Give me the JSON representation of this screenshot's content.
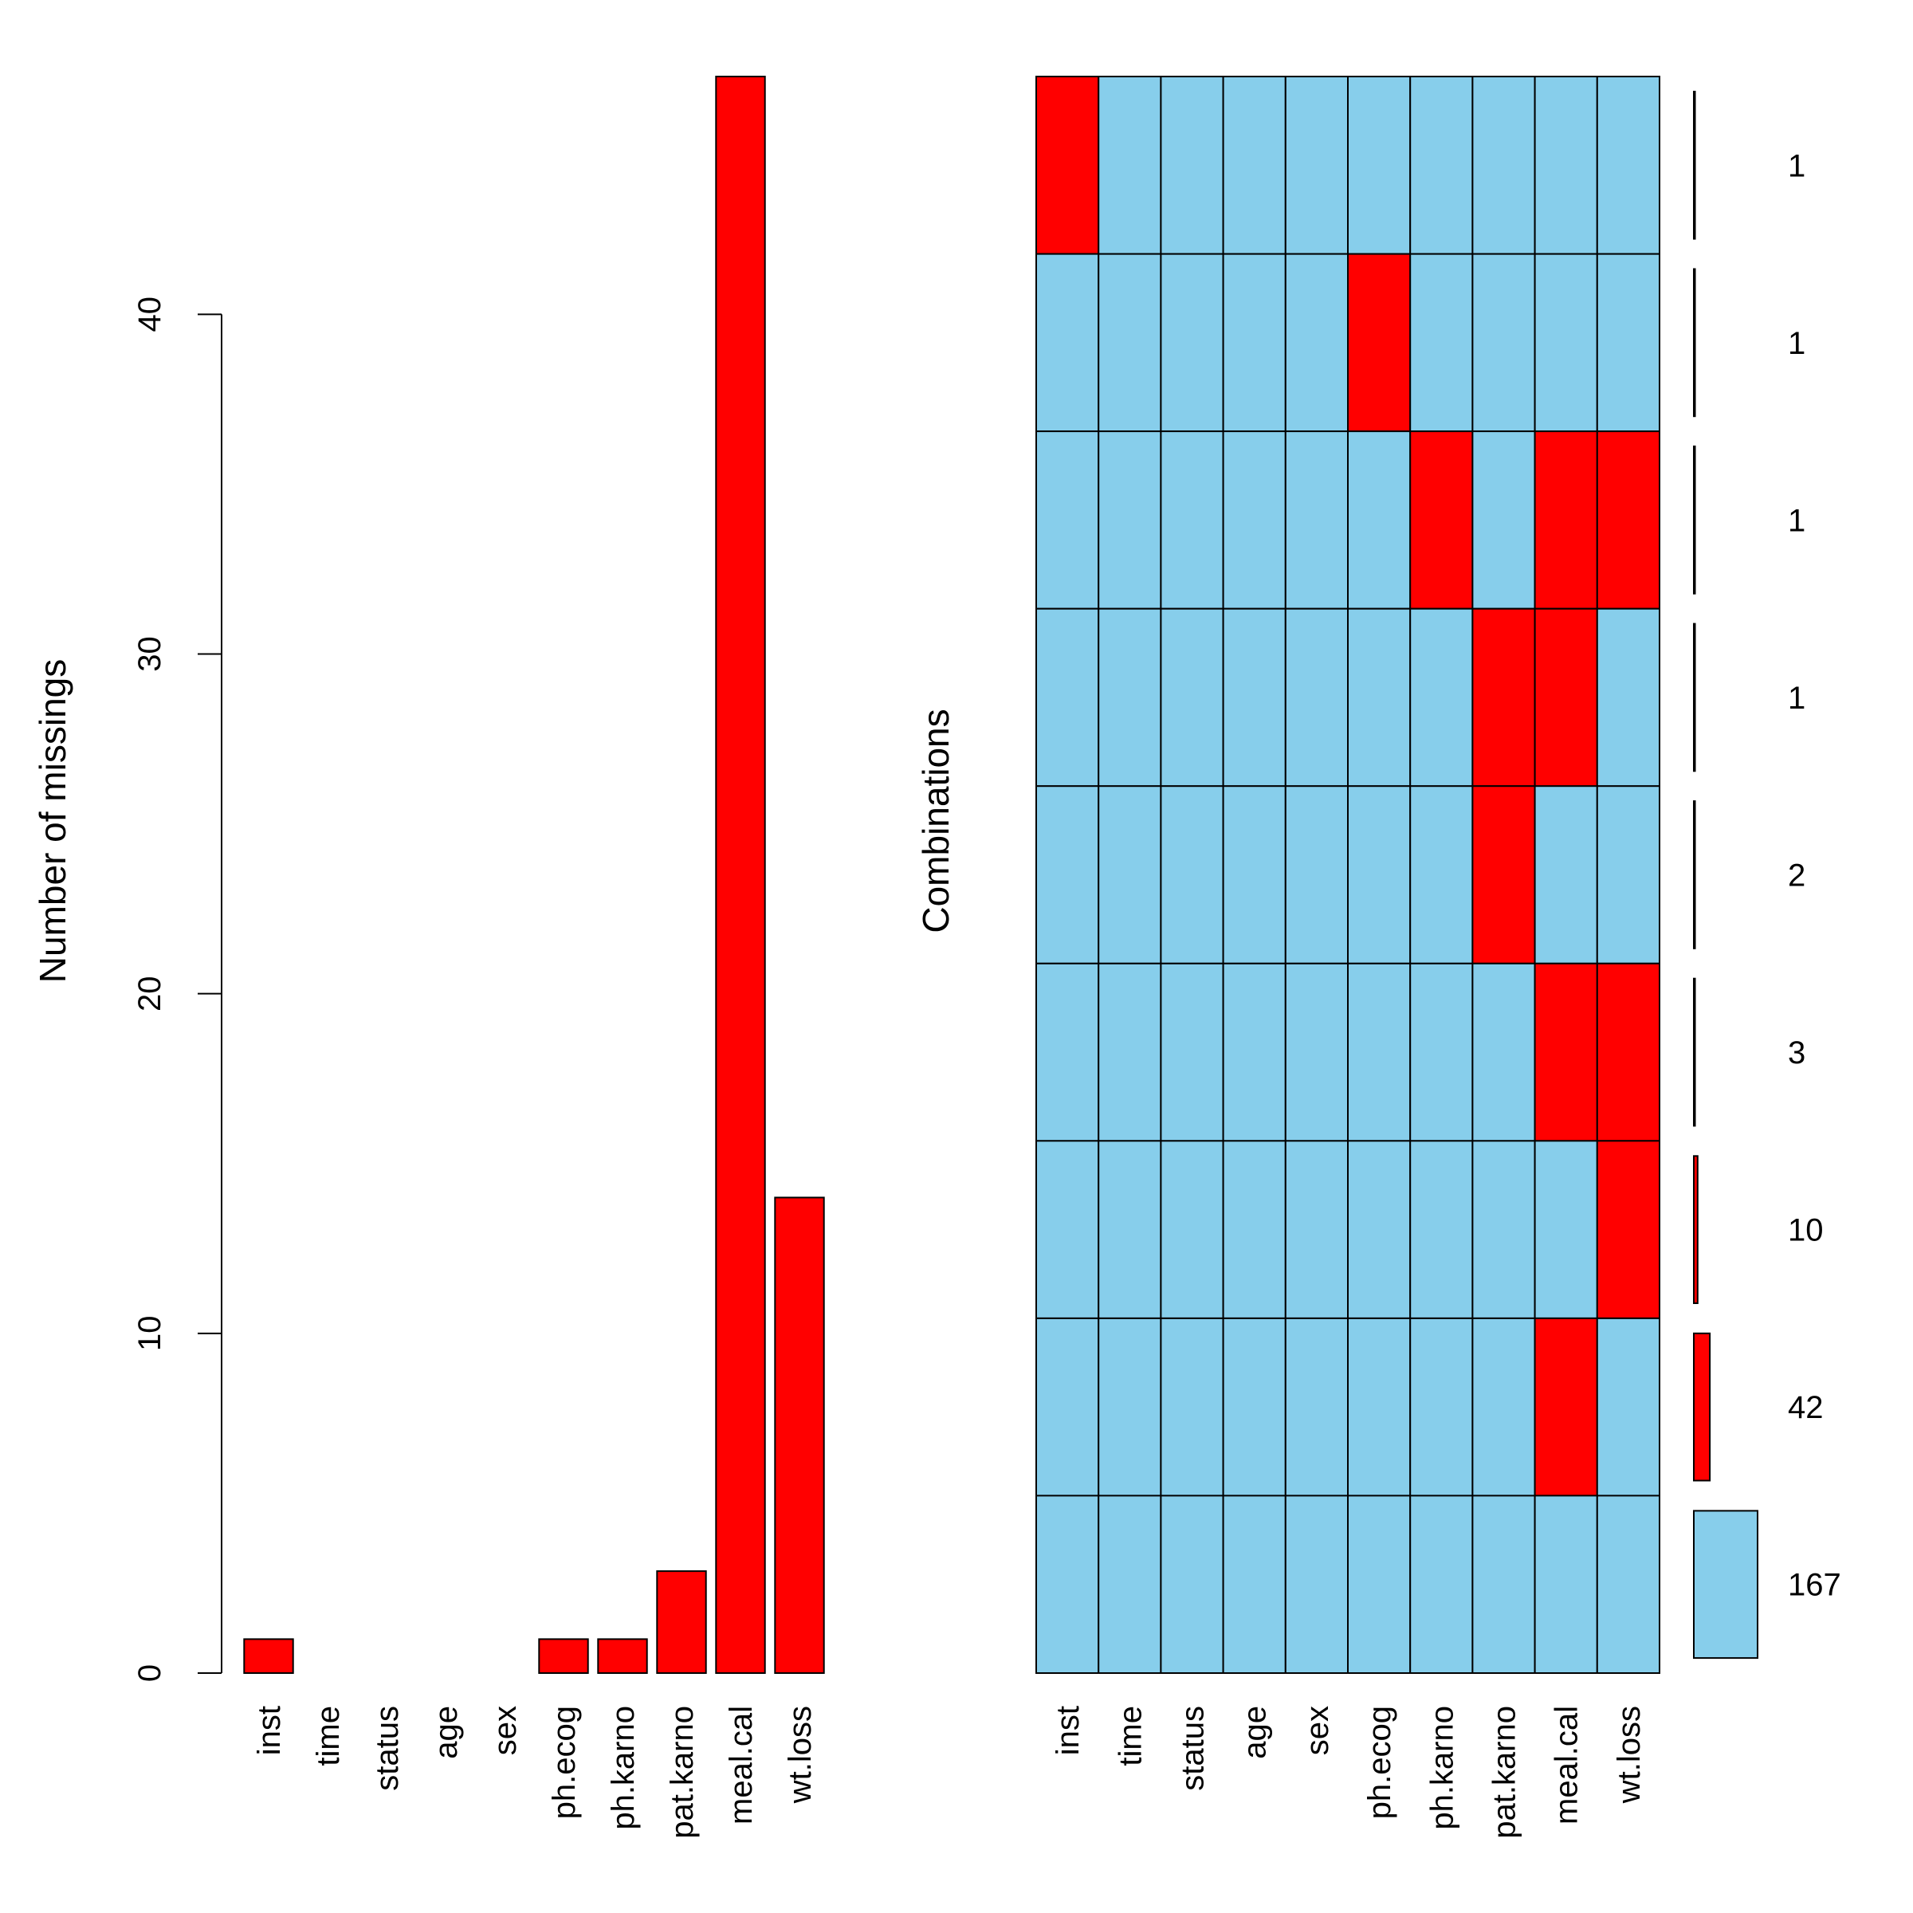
{
  "colors": {
    "missing": "#ff0000",
    "observed": "#87ceeb",
    "axis": "#000000",
    "background": "#ffffff"
  },
  "chart_data": [
    {
      "type": "bar",
      "title": "",
      "xlabel": "",
      "ylabel": "Number of missings",
      "categories": [
        "inst",
        "time",
        "status",
        "age",
        "sex",
        "ph.ecog",
        "ph.karno",
        "pat.karno",
        "meal.cal",
        "wt.loss"
      ],
      "values": [
        1,
        0,
        0,
        0,
        0,
        1,
        1,
        3,
        47,
        14
      ],
      "ylim": [
        0,
        47
      ],
      "yticks": [
        0,
        10,
        20,
        30,
        40
      ],
      "grid": false,
      "legend": "none"
    },
    {
      "type": "heatmap",
      "title": "",
      "ylabel": "Combinations",
      "variables": [
        "inst",
        "time",
        "status",
        "age",
        "sex",
        "ph.ecog",
        "ph.karno",
        "pat.karno",
        "meal.cal",
        "wt.loss"
      ],
      "combinations": [
        {
          "count": 1,
          "pattern": [
            1,
            0,
            0,
            0,
            0,
            0,
            0,
            0,
            0,
            0
          ]
        },
        {
          "count": 1,
          "pattern": [
            0,
            0,
            0,
            0,
            0,
            1,
            0,
            0,
            0,
            0
          ]
        },
        {
          "count": 1,
          "pattern": [
            0,
            0,
            0,
            0,
            0,
            0,
            1,
            0,
            1,
            1
          ]
        },
        {
          "count": 1,
          "pattern": [
            0,
            0,
            0,
            0,
            0,
            0,
            0,
            1,
            1,
            0
          ]
        },
        {
          "count": 2,
          "pattern": [
            0,
            0,
            0,
            0,
            0,
            0,
            0,
            1,
            0,
            0
          ]
        },
        {
          "count": 3,
          "pattern": [
            0,
            0,
            0,
            0,
            0,
            0,
            0,
            0,
            1,
            1
          ]
        },
        {
          "count": 10,
          "pattern": [
            0,
            0,
            0,
            0,
            0,
            0,
            0,
            0,
            0,
            1
          ]
        },
        {
          "count": 42,
          "pattern": [
            0,
            0,
            0,
            0,
            0,
            0,
            0,
            0,
            1,
            0
          ]
        },
        {
          "count": 167,
          "pattern": [
            0,
            0,
            0,
            0,
            0,
            0,
            0,
            0,
            0,
            0
          ]
        }
      ],
      "grid": false,
      "legend": "none"
    }
  ]
}
